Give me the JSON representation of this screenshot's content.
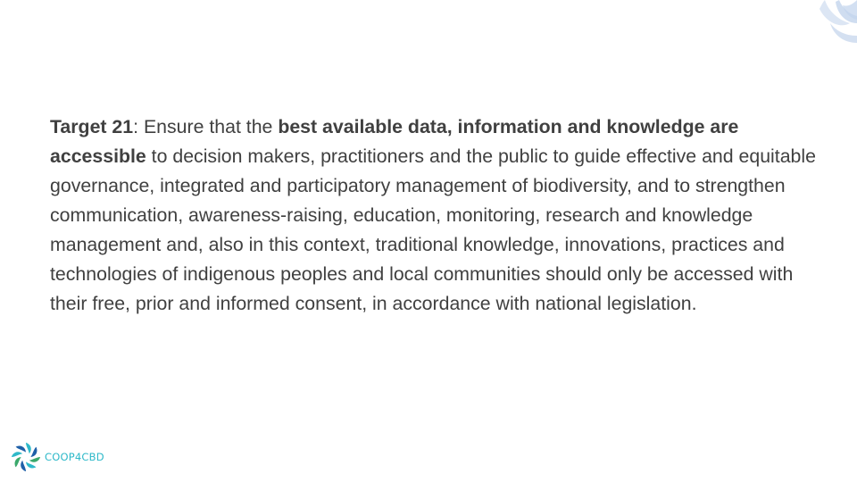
{
  "slide": {
    "target": {
      "label": "Target 21",
      "separator": ": Ensure that the ",
      "highlight": "best available data, information and knowledge are accessible",
      "body": " to decision makers, practitioners and the public to guide effective and equitable governance, integrated and participatory management of biodiversity, and to strengthen communication, awareness-raising, education, monitoring, research and knowledge management and, also in this context, traditional knowledge, innovations, practices and technologies of indigenous peoples and local communities should only be accessed with their free, prior and informed consent, in accordance with national legislation."
    },
    "logo": {
      "text": "COOP4CBD",
      "icon": "coop4cbd-logo-icon"
    },
    "decoration": {
      "icon": "leaf-decoration-icon"
    },
    "colors": {
      "text": "#404040",
      "logo_teal": "#2eb9c9",
      "logo_blue": "#1e5fa8",
      "logo_green": "#3aa86b",
      "decoration": "#c9d8ee"
    }
  }
}
